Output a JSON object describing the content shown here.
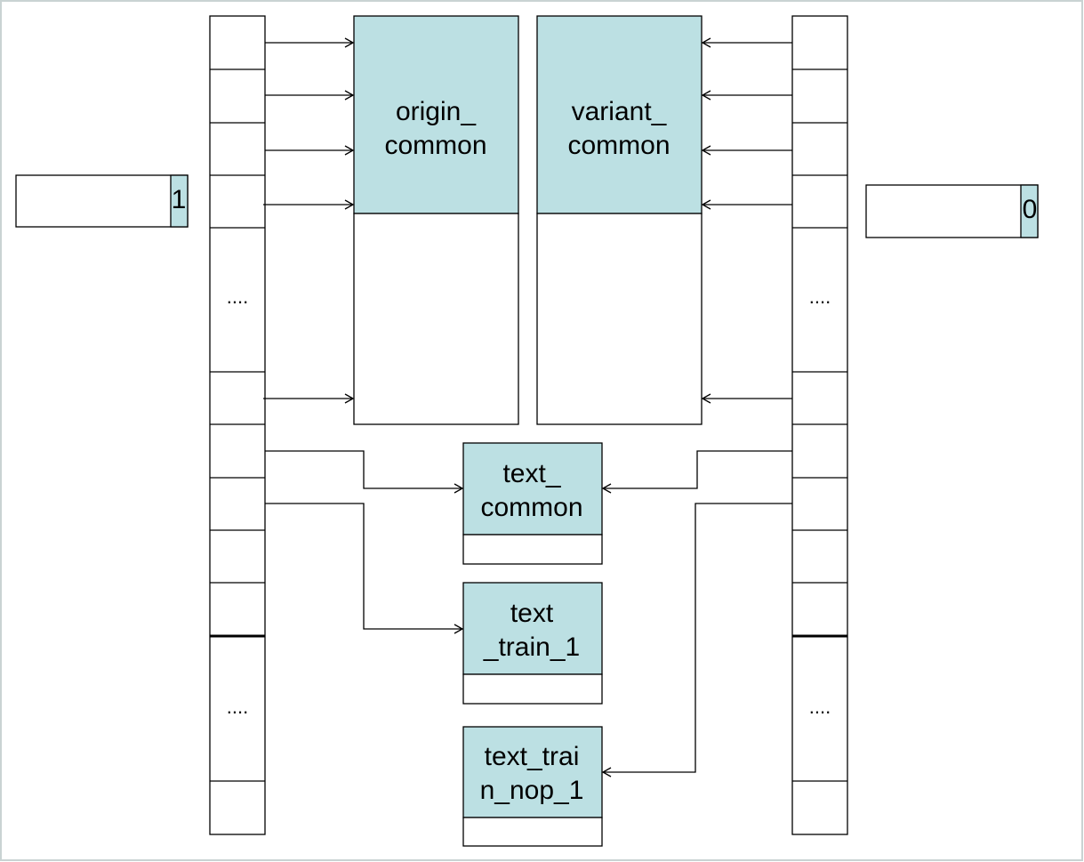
{
  "left_register": {
    "value": "1"
  },
  "right_register": {
    "value": "0"
  },
  "left_table": {
    "ellipsis_upper": "....",
    "ellipsis_lower": "...."
  },
  "right_table": {
    "ellipsis_upper": "....",
    "ellipsis_lower": "...."
  },
  "blocks": {
    "origin_common": {
      "line1": "origin_",
      "line2": "common"
    },
    "variant_common": {
      "line1": "variant_",
      "line2": "common"
    },
    "text_common": {
      "line1": "text_",
      "line2": "common"
    },
    "text_train_1": {
      "line1": "text",
      "line2": "_train_1"
    },
    "text_train_nop_1": {
      "line1": "text_trai",
      "line2": "n_nop_1"
    }
  },
  "colors": {
    "block_fill": "#bce0e3",
    "stroke": "#000000",
    "background": "#ffffff",
    "frame": "#c9d3d3"
  }
}
